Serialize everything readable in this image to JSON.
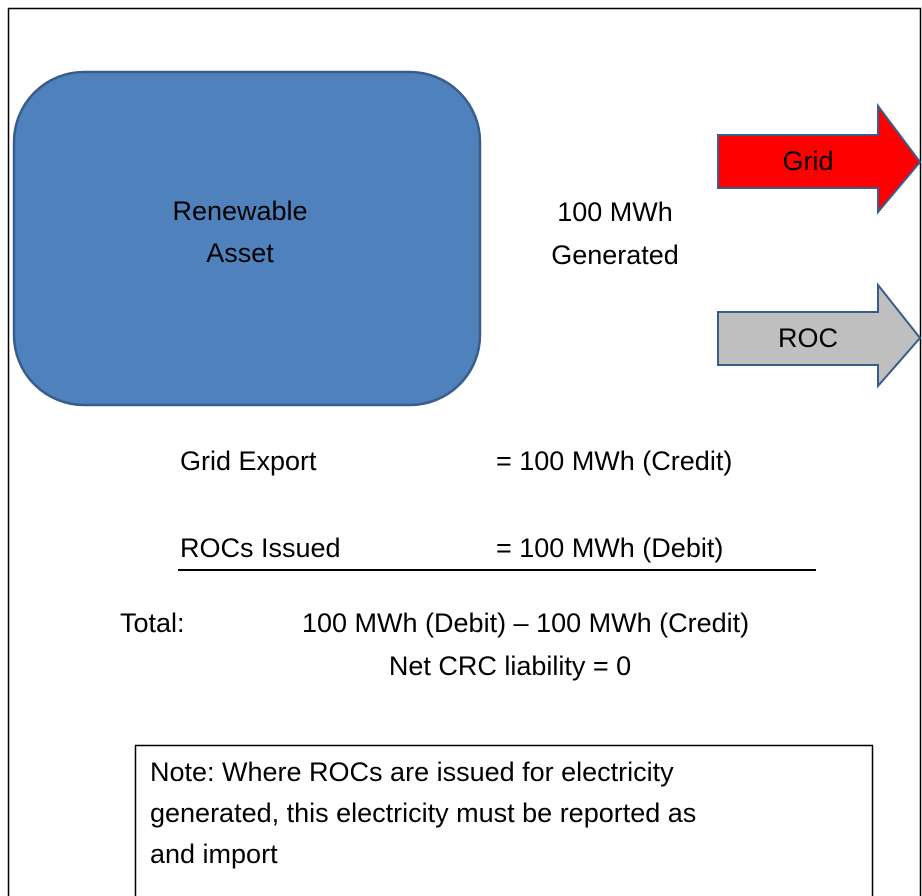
{
  "nodes": [
    {
      "label_lines": [
        "Renewable",
        "Asset"
      ]
    },
    {
      "label": "Grid"
    },
    {
      "label": "ROC"
    }
  ],
  "flow_label": [
    "100 MWh",
    "Generated"
  ],
  "ledger": [
    {
      "item": "Grid Export",
      "amount": "= 100 MWh (Credit)"
    },
    {
      "item": "ROCs Issued",
      "amount": "= 100 MWh (Debit)"
    }
  ],
  "total": {
    "label": "Total:",
    "expression": "100 MWh (Debit) – 100 MWh (Credit)",
    "result": "Net CRC liability = 0"
  },
  "note": [
    "Note: Where ROCs are issued for electricity",
    "generated, this electricity must be reported as",
    "and import"
  ]
}
